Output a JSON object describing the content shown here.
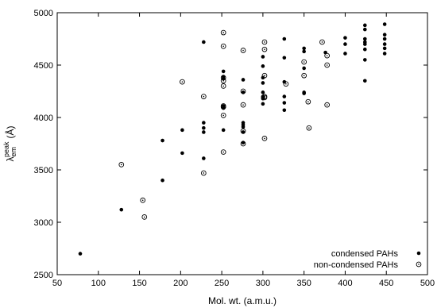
{
  "chart_data": {
    "type": "scatter",
    "title": "",
    "xlabel": "Mol. wt. (a.m.u.)",
    "ylabel_main": "λ",
    "ylabel_sup": "peak",
    "ylabel_sub": "em",
    "ylabel_unit": "(Å)",
    "xlim": [
      50,
      500
    ],
    "ylim": [
      2500,
      5000
    ],
    "xticks": [
      50,
      100,
      150,
      200,
      250,
      300,
      350,
      400,
      450,
      500
    ],
    "yticks": [
      2500,
      3000,
      3500,
      4000,
      4500,
      5000
    ],
    "grid": false,
    "legend_position": "bottom-right",
    "series": [
      {
        "name": "condensed PAHs",
        "marker": "filled-circle",
        "color": "#000000",
        "points": [
          [
            78,
            2700
          ],
          [
            128,
            3120
          ],
          [
            178,
            3780
          ],
          [
            178,
            3400
          ],
          [
            202,
            3880
          ],
          [
            202,
            3660
          ],
          [
            228,
            4720
          ],
          [
            228,
            3950
          ],
          [
            228,
            3900
          ],
          [
            228,
            3860
          ],
          [
            228,
            3610
          ],
          [
            252,
            4440
          ],
          [
            252,
            4390
          ],
          [
            252,
            4370
          ],
          [
            252,
            4110
          ],
          [
            252,
            4090
          ],
          [
            252,
            3880
          ],
          [
            276,
            4360
          ],
          [
            276,
            4240
          ],
          [
            276,
            3950
          ],
          [
            276,
            3930
          ],
          [
            276,
            3910
          ],
          [
            276,
            3860
          ],
          [
            276,
            3760
          ],
          [
            300,
            4580
          ],
          [
            300,
            4490
          ],
          [
            300,
            4380
          ],
          [
            300,
            4330
          ],
          [
            300,
            4240
          ],
          [
            300,
            4200
          ],
          [
            300,
            4190
          ],
          [
            300,
            4180
          ],
          [
            300,
            4130
          ],
          [
            326,
            4750
          ],
          [
            326,
            4570
          ],
          [
            326,
            4340
          ],
          [
            326,
            4200
          ],
          [
            326,
            4140
          ],
          [
            326,
            4070
          ],
          [
            350,
            4660
          ],
          [
            350,
            4630
          ],
          [
            350,
            4470
          ],
          [
            350,
            4240
          ],
          [
            350,
            4230
          ],
          [
            376,
            4620
          ],
          [
            400,
            4760
          ],
          [
            400,
            4700
          ],
          [
            400,
            4610
          ],
          [
            424,
            4880
          ],
          [
            424,
            4840
          ],
          [
            424,
            4750
          ],
          [
            424,
            4720
          ],
          [
            424,
            4700
          ],
          [
            424,
            4650
          ],
          [
            424,
            4550
          ],
          [
            424,
            4350
          ],
          [
            448,
            4890
          ],
          [
            448,
            4790
          ],
          [
            448,
            4750
          ],
          [
            448,
            4700
          ],
          [
            448,
            4660
          ],
          [
            448,
            4610
          ]
        ]
      },
      {
        "name": "non-condensed PAHs",
        "marker": "open-circle",
        "color": "#000000",
        "points": [
          [
            128,
            3550
          ],
          [
            154,
            3210
          ],
          [
            156,
            3050
          ],
          [
            202,
            4340
          ],
          [
            228,
            4200
          ],
          [
            228,
            3470
          ],
          [
            252,
            4810
          ],
          [
            252,
            4680
          ],
          [
            252,
            4380
          ],
          [
            252,
            4350
          ],
          [
            252,
            4300
          ],
          [
            252,
            4110
          ],
          [
            252,
            4100
          ],
          [
            252,
            4020
          ],
          [
            252,
            3670
          ],
          [
            276,
            4640
          ],
          [
            276,
            4250
          ],
          [
            276,
            4120
          ],
          [
            276,
            3870
          ],
          [
            276,
            3750
          ],
          [
            302,
            4720
          ],
          [
            302,
            4650
          ],
          [
            302,
            4400
          ],
          [
            302,
            4200
          ],
          [
            302,
            4190
          ],
          [
            302,
            3800
          ],
          [
            328,
            4320
          ],
          [
            350,
            4530
          ],
          [
            350,
            4400
          ],
          [
            355,
            4150
          ],
          [
            356,
            3900
          ],
          [
            372,
            4720
          ],
          [
            378,
            4590
          ],
          [
            378,
            4500
          ],
          [
            378,
            4120
          ]
        ]
      }
    ]
  }
}
